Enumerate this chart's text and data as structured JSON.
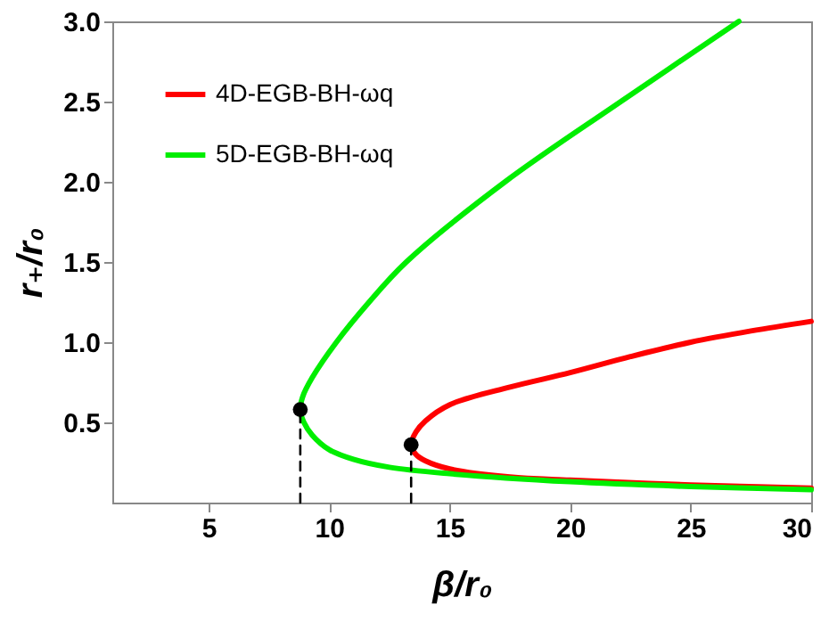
{
  "chart_data": {
    "type": "line",
    "xlabel": "β/r₀",
    "ylabel": "r₊/r₀",
    "xlim": [
      1,
      30
    ],
    "ylim": [
      0,
      3
    ],
    "xticks": [
      5,
      10,
      15,
      20,
      25,
      30
    ],
    "yticks": [
      0.5,
      {
        "value": 1,
        "label": "1.0"
      },
      1.5,
      {
        "value": 2,
        "label": "2.0"
      },
      2.5,
      {
        "value": 3,
        "label": "3.0"
      }
    ],
    "grid": false,
    "legend": "top left",
    "marker": "none",
    "series": [
      {
        "name": "4D-EGB-BH-ωq",
        "color": "#ff0000",
        "x": [
          30,
          27.5,
          25,
          22.5,
          20,
          17.5,
          15,
          14,
          13.6,
          13.4,
          13.6,
          14,
          15,
          17.5,
          20,
          25,
          30
        ],
        "values": [
          1.13,
          1.07,
          1.0,
          0.91,
          0.81,
          0.72,
          0.61,
          0.51,
          0.44,
          0.36,
          0.3,
          0.26,
          0.21,
          0.16,
          0.14,
          0.11,
          0.09
        ]
      },
      {
        "name": "5D-EGB-BH-ωq",
        "color": "#00ee00",
        "x": [
          27,
          22.1,
          17.3,
          13.2,
          11.6,
          10.3,
          9.3,
          8.9,
          8.8,
          8.95,
          9.3,
          10,
          11,
          12.5,
          15,
          20,
          25,
          30
        ],
        "values": [
          3.0,
          2.5,
          2.0,
          1.5,
          1.24,
          1.0,
          0.78,
          0.66,
          0.58,
          0.5,
          0.42,
          0.33,
          0.27,
          0.22,
          0.18,
          0.13,
          0.1,
          0.08
        ]
      },
      {
        "type": "line",
        "line_style": "dashed",
        "color": "#000000",
        "x": [
          8.8,
          8.8
        ],
        "values": [
          0,
          0.58
        ]
      },
      {
        "type": "line",
        "line_style": "dashed",
        "color": "#000000",
        "x": [
          13.4,
          13.4
        ],
        "values": [
          0,
          0.36
        ]
      },
      {
        "type": "scatter",
        "marker": "circle",
        "color": "#000000",
        "x": [
          8.8,
          13.4
        ],
        "values": [
          0.58,
          0.36
        ]
      }
    ]
  }
}
